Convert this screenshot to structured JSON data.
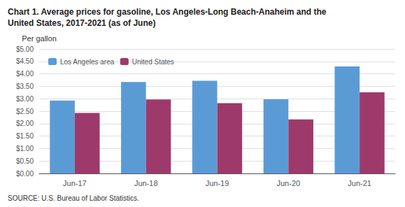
{
  "chart_data": {
    "type": "bar",
    "title": "Chart 1. Average prices for gasoline, Los Angeles-Long Beach-Anaheim and the\nUnited States, 2017-2021 (as of June)",
    "ylabel": "Per gallon",
    "annotations": [
      "SOURCE: U.S. Bureau of Labor Statistics."
    ],
    "categories": [
      "Jun-17",
      "Jun-18",
      "Jun-19",
      "Jun-20",
      "Jun-21"
    ],
    "series": [
      {
        "name": "Los Angeles area",
        "color": "#5B9BD5",
        "values": [
          2.93,
          3.67,
          3.72,
          2.98,
          4.3
        ]
      },
      {
        "name": "United States",
        "color": "#9E3A6B",
        "values": [
          2.43,
          2.97,
          2.82,
          2.17,
          3.26
        ]
      }
    ],
    "ylim": [
      0,
      5.0
    ],
    "yticks": [
      {
        "value": 0.0,
        "label": "$0.00"
      },
      {
        "value": 0.5,
        "label": "$0.50"
      },
      {
        "value": 1.0,
        "label": "$1.00"
      },
      {
        "value": 1.5,
        "label": "$1.50"
      },
      {
        "value": 2.0,
        "label": "$2.00"
      },
      {
        "value": 2.5,
        "label": "$2.50"
      },
      {
        "value": 3.0,
        "label": "$3.00"
      },
      {
        "value": 3.5,
        "label": "$3.50"
      },
      {
        "value": 4.0,
        "label": "$4.00"
      },
      {
        "value": 4.5,
        "label": "$4.50"
      },
      {
        "value": 5.0,
        "label": "$5.00"
      }
    ],
    "grid": true,
    "legend": "upper left"
  }
}
